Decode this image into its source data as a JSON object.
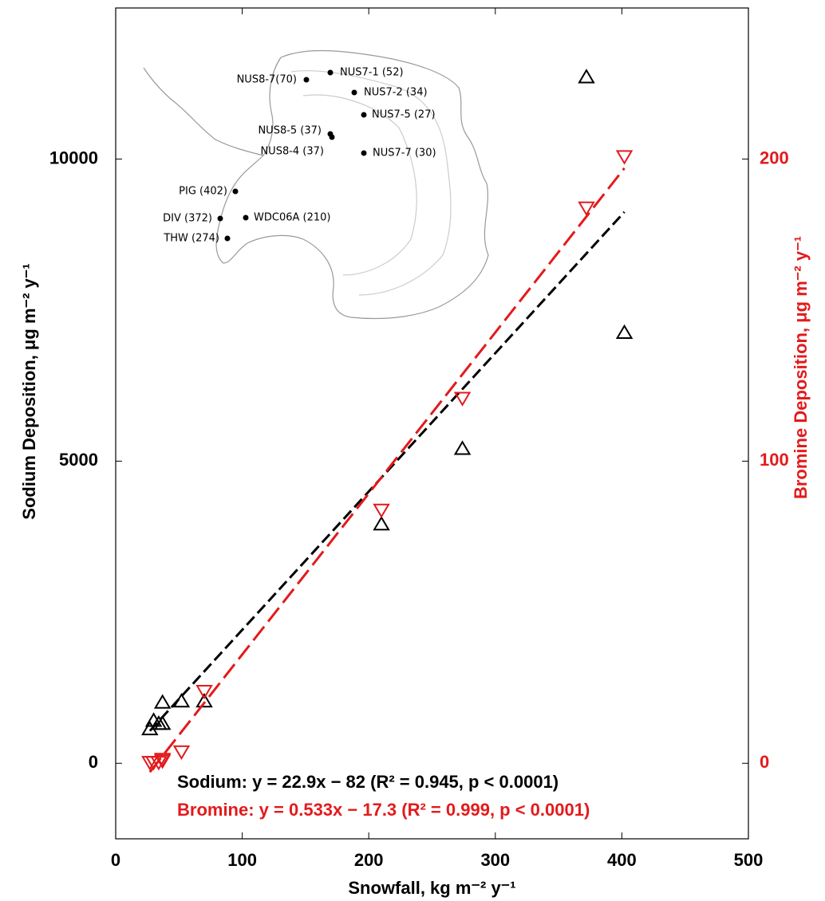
{
  "chart_data": {
    "type": "scatter",
    "xlabel": "Snowfall, kg m⁻² y⁻¹",
    "ylabel": "Sodium Deposition, μg m⁻² y⁻¹",
    "y2label": "Bromine Deposition, μg m⁻² y⁻¹",
    "xlim": [
      0,
      500
    ],
    "xticks": [
      0,
      100,
      200,
      300,
      400,
      500
    ],
    "ylim": [
      -1250,
      12500
    ],
    "yticks": [
      0,
      5000,
      10000
    ],
    "y2lim": [
      -25,
      250
    ],
    "y2ticks": [
      0,
      100,
      200
    ],
    "x": [
      27,
      30,
      34,
      37,
      37,
      52,
      70,
      210,
      274,
      372,
      402
    ],
    "series": [
      {
        "name": "Sodium",
        "color": "#000000",
        "marker": "triangle-up",
        "values": [
          560,
          700,
          650,
          1000,
          650,
          1020,
          1020,
          3950,
          5200,
          11350,
          7120
        ],
        "fit": {
          "slope": 22.9,
          "intercept": -82
        }
      },
      {
        "name": "Bromine",
        "color": "#e31a1c",
        "marker": "triangle-down",
        "axis": "y2",
        "values": [
          0.5,
          0.5,
          0.5,
          1,
          1.5,
          4,
          24,
          84,
          121,
          184,
          201
        ],
        "fit": {
          "slope": 0.533,
          "intercept": -17.3
        }
      }
    ],
    "annotations": [
      "Sodium: y = 22.9x − 82 (R² = 0.945, p < 0.0001)",
      "Bromine: y = 0.533x − 17.3 (R² = 0.999, p < 0.0001)"
    ],
    "map_labels": [
      "NUS8-7(70)",
      "NUS7-1 (52)",
      "NUS7-2 (34)",
      "NUS7-5 (27)",
      "NUS8-5 (37)",
      "NUS8-4 (37)",
      "NUS7-7 (30)",
      "PIG (402)",
      "DIV (372)",
      "WDC06A (210)",
      "THW (274)"
    ]
  }
}
